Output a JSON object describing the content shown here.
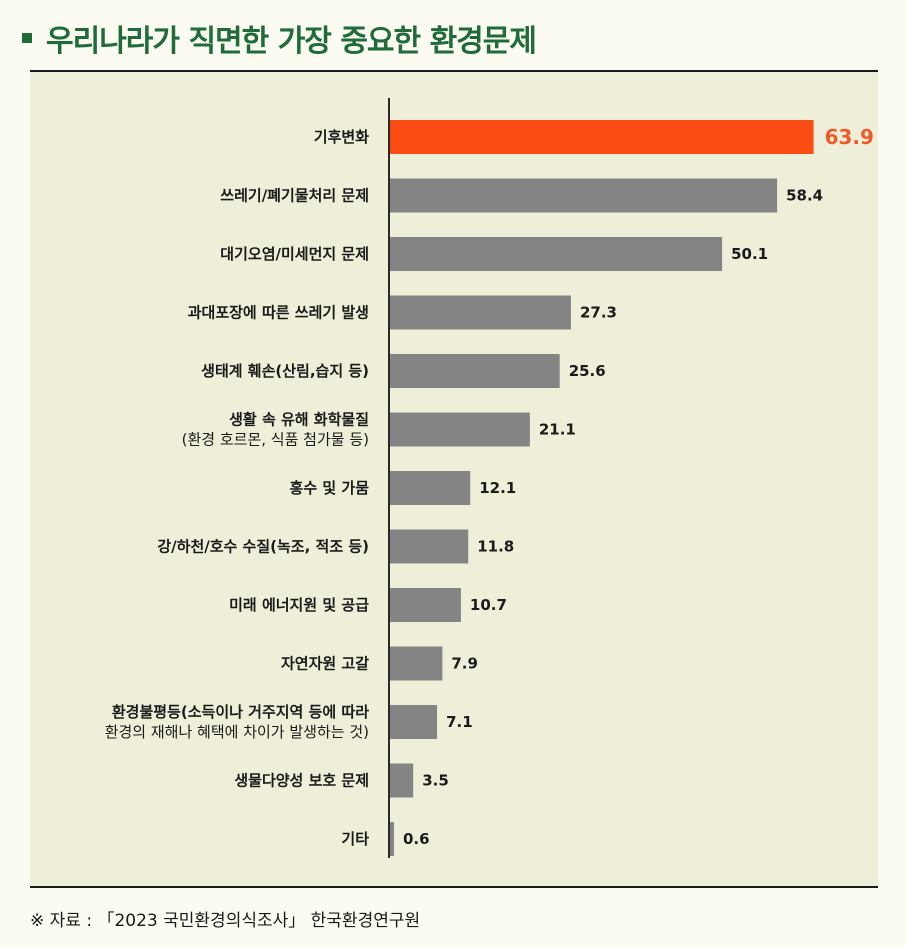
{
  "title": "우리나라가 직면한 가장 중요한 환경문제",
  "source": "※ 자료 : 「2023 국민환경의식조사」 한국환경연구원",
  "colors": {
    "title": "#1f6b3a",
    "highlight_bar": "#fb4c14",
    "highlight_label": "#f05a28",
    "bar": "#848484",
    "panel_background": "#efefd9",
    "page_background": "#fbfbf1"
  },
  "chart_data": {
    "type": "bar",
    "orientation": "horizontal",
    "title": "우리나라가 직면한 가장 중요한 환경문제",
    "xlabel": "",
    "ylabel": "",
    "xlim": [
      0,
      70
    ],
    "grid": false,
    "legend": "none",
    "categories": [
      [
        "기후변화"
      ],
      [
        "쓰레기/폐기물처리 문제"
      ],
      [
        "대기오염/미세먼지 문제"
      ],
      [
        "과대포장에 따른 쓰레기 발생"
      ],
      [
        "생태계 훼손(산림,습지 등)"
      ],
      [
        "생활 속 유해 화학물질",
        "(환경 호르몬, 식품 첨가물 등)"
      ],
      [
        "홍수 및 가뭄"
      ],
      [
        "강/하천/호수 수질(녹조, 적조 등)"
      ],
      [
        "미래 에너지원 및 공급"
      ],
      [
        "자연자원 고갈"
      ],
      [
        "환경불평등(소득이나 거주지역 등에 따라",
        "환경의 재해나 혜택에 차이가 발생하는 것)"
      ],
      [
        "생물다양성 보호 문제"
      ],
      [
        "기타"
      ]
    ],
    "value_labels": [
      "63.9",
      "58.4",
      "50.1",
      "27.3",
      "25.6",
      "21.1",
      "12.1",
      "11.8",
      "10.7",
      "7.9",
      "7.1",
      "3.5",
      "0.6"
    ],
    "values": [
      63.9,
      58.4,
      50.1,
      27.3,
      25.6,
      21.1,
      12.1,
      11.8,
      10.7,
      7.9,
      7.1,
      3.5,
      0.6
    ],
    "highlight_index": 0
  }
}
